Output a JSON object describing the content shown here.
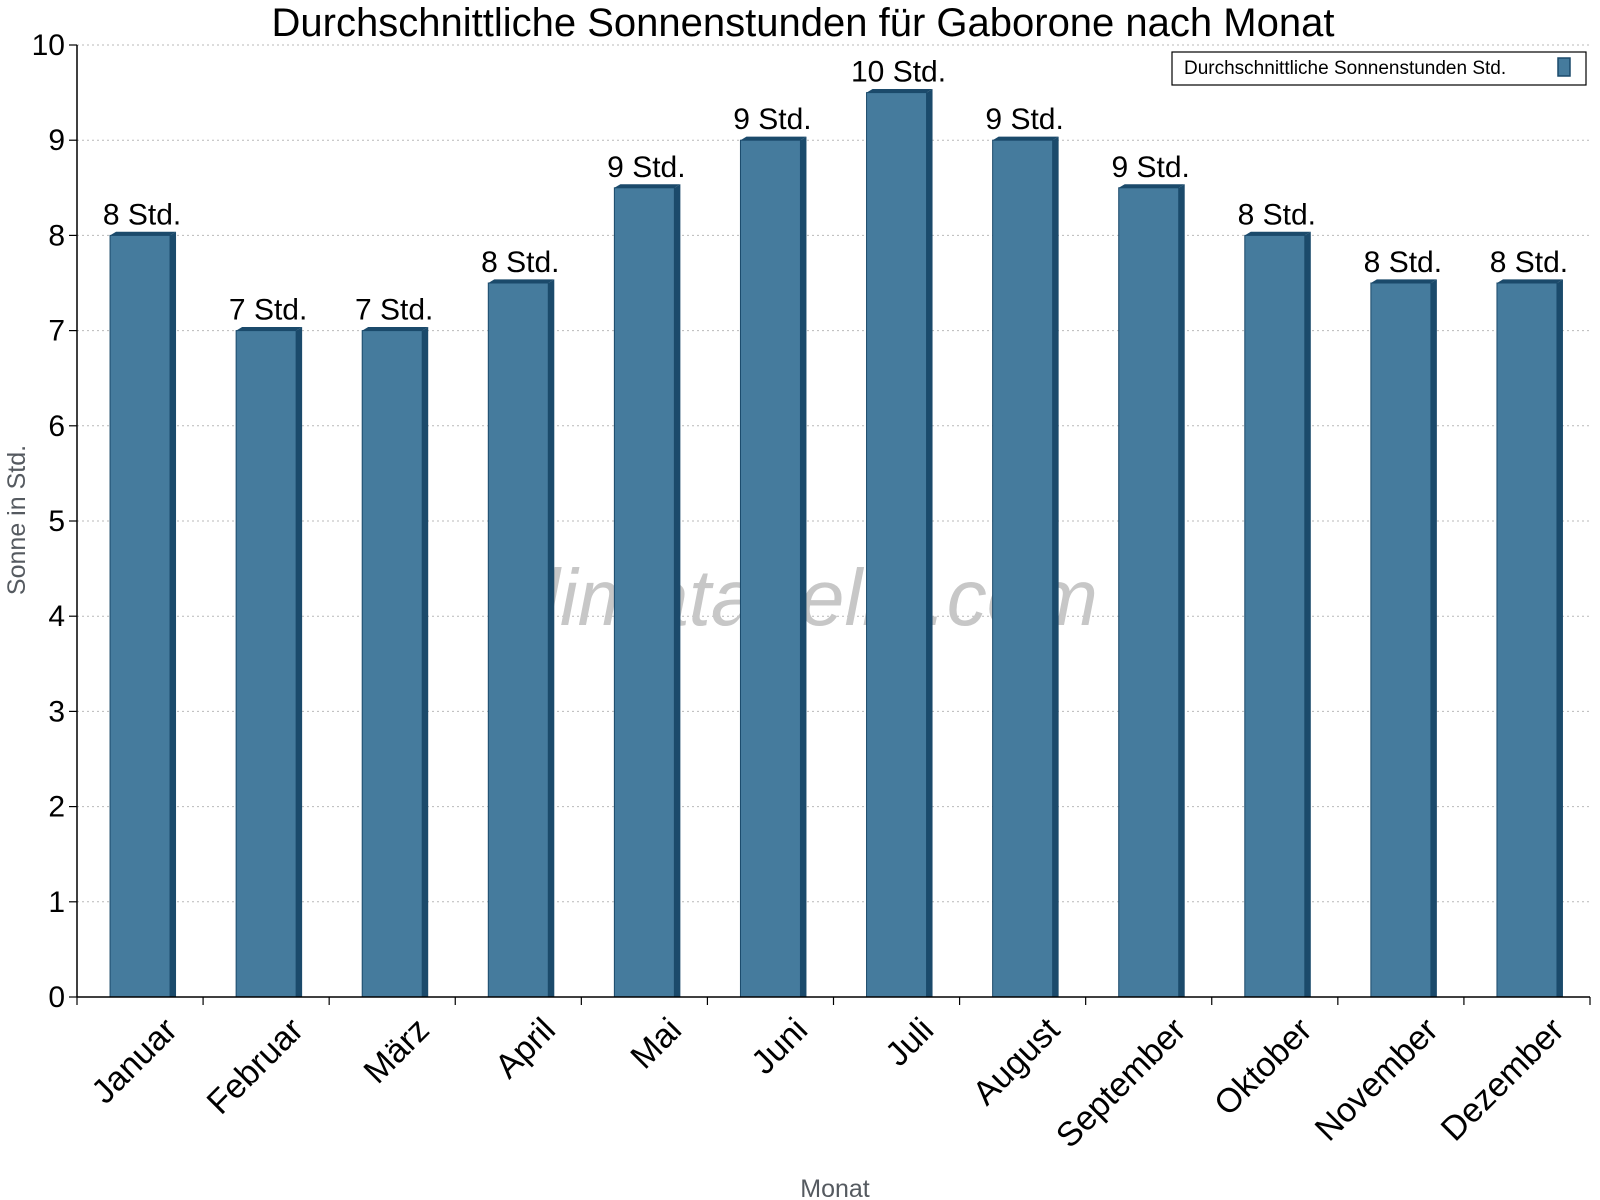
{
  "chart_data": {
    "type": "bar",
    "title": "Durchschnittliche Sonnenstunden für Gaborone nach Monat",
    "xlabel": "Monat",
    "ylabel": "Sonne in Std.",
    "ylim": [
      0,
      10
    ],
    "yticks": [
      "0",
      "1",
      "2",
      "3",
      "4",
      "5",
      "6",
      "7",
      "8",
      "9",
      "10"
    ],
    "grid": true,
    "legend_position": "top-right",
    "categories": [
      "Januar",
      "Februar",
      "März",
      "April",
      "Mai",
      "Juni",
      "Juli",
      "August",
      "September",
      "Oktober",
      "November",
      "Dezember"
    ],
    "series": [
      {
        "name": "Durchschnittliche Sonnenstunden Std.",
        "color": "#457b9d",
        "values": [
          8,
          7,
          7,
          7.5,
          8.5,
          9,
          9.5,
          9,
          8.5,
          8,
          7.5,
          7.5
        ],
        "labels": [
          "8 Std.",
          "7 Std.",
          "7 Std.",
          "8 Std.",
          "9 Std.",
          "9 Std.",
          "10 Std.",
          "9 Std.",
          "9 Std.",
          "8 Std.",
          "8 Std.",
          "8 Std."
        ]
      }
    ],
    "watermark": "klimatabelle.com"
  }
}
